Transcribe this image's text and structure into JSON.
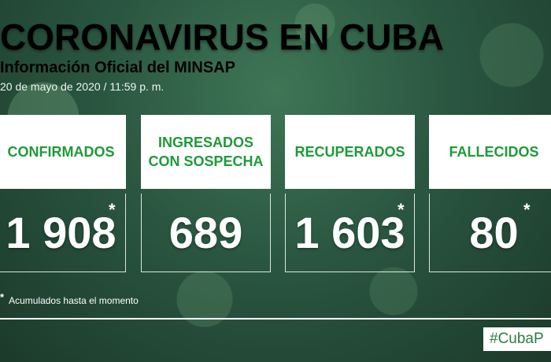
{
  "header": {
    "title": "CORONAVIRUS EN CUBA",
    "subtitle": "Información Oficial del MINSAP",
    "date": "20 de mayo de 2020 / 11:59 p. m."
  },
  "cards": [
    {
      "label": "CONFIRMADOS",
      "value": "1 908",
      "asterisk": "*"
    },
    {
      "label_line1": "INGRESADOS",
      "label_line2": "CON SOSPECHA",
      "value": "689"
    },
    {
      "label": "RECUPERADOS",
      "value": "1 603",
      "asterisk": "*"
    },
    {
      "label": "FALLECIDOS",
      "value": "80",
      "asterisk": "*"
    }
  ],
  "footnote": {
    "asterisk": "*",
    "text": "Acumulados hasta el momento"
  },
  "hashtag": "#CubaP",
  "colors": {
    "label_green": "#1f9a3a",
    "background_green": "#2a5640"
  }
}
